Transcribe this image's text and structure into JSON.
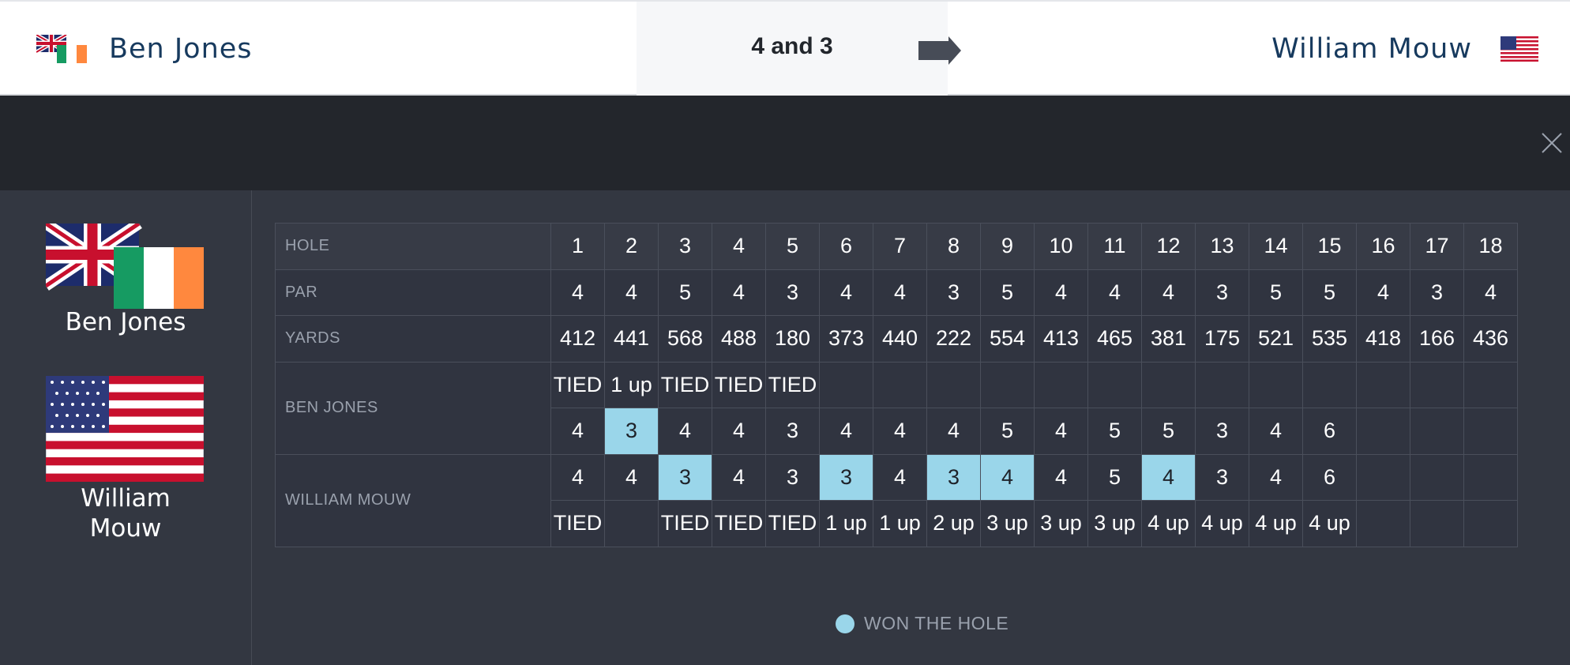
{
  "header": {
    "player1_name": "Ben Jones",
    "player2_name": "William Mouw",
    "result": "4 and 3",
    "player1_flags": [
      "uk-flag",
      "ireland-flag"
    ],
    "player2_flag": "us-flag"
  },
  "sidebar": {
    "player1_name": "Ben Jones",
    "player2_name_line1": "William",
    "player2_name_line2": "Mouw"
  },
  "scorecard": {
    "labels": {
      "hole": "HOLE",
      "par": "PAR",
      "yards": "YARDS",
      "player1": "BEN JONES",
      "player2": "WILLIAM MOUW"
    },
    "holes": [
      "1",
      "2",
      "3",
      "4",
      "5",
      "6",
      "7",
      "8",
      "9",
      "10",
      "11",
      "12",
      "13",
      "14",
      "15",
      "16",
      "17",
      "18"
    ],
    "par": [
      "4",
      "4",
      "5",
      "4",
      "3",
      "4",
      "4",
      "3",
      "5",
      "4",
      "4",
      "4",
      "3",
      "5",
      "5",
      "4",
      "3",
      "4"
    ],
    "yards": [
      "412",
      "441",
      "568",
      "488",
      "180",
      "373",
      "440",
      "222",
      "554",
      "413",
      "465",
      "381",
      "175",
      "521",
      "535",
      "418",
      "166",
      "436"
    ],
    "player1_status": [
      "TIED",
      "1 up",
      "TIED",
      "TIED",
      "TIED",
      "",
      "",
      "",
      "",
      "",
      "",
      "",
      "",
      "",
      "",
      "",
      "",
      ""
    ],
    "player1_scores": [
      "4",
      "3",
      "4",
      "4",
      "3",
      "4",
      "4",
      "4",
      "5",
      "4",
      "5",
      "5",
      "3",
      "4",
      "6",
      "",
      "",
      ""
    ],
    "player1_won": [
      false,
      true,
      false,
      false,
      false,
      false,
      false,
      false,
      false,
      false,
      false,
      false,
      false,
      false,
      false,
      false,
      false,
      false
    ],
    "player2_scores": [
      "4",
      "4",
      "3",
      "4",
      "3",
      "3",
      "4",
      "3",
      "4",
      "4",
      "5",
      "4",
      "3",
      "4",
      "6",
      "",
      "",
      ""
    ],
    "player2_won": [
      false,
      false,
      true,
      false,
      false,
      true,
      false,
      true,
      true,
      false,
      false,
      true,
      false,
      false,
      false,
      false,
      false,
      false
    ],
    "player2_status": [
      "TIED",
      "",
      "TIED",
      "TIED",
      "TIED",
      "1 up",
      "1 up",
      "2 up",
      "3 up",
      "3 up",
      "3 up",
      "4 up",
      "4 up",
      "4 up",
      "4 up",
      "",
      "",
      ""
    ]
  },
  "legend": {
    "won_label": "WON THE HOLE"
  },
  "colors": {
    "won": "#9ad6ea",
    "name_blue": "#173a5e"
  }
}
